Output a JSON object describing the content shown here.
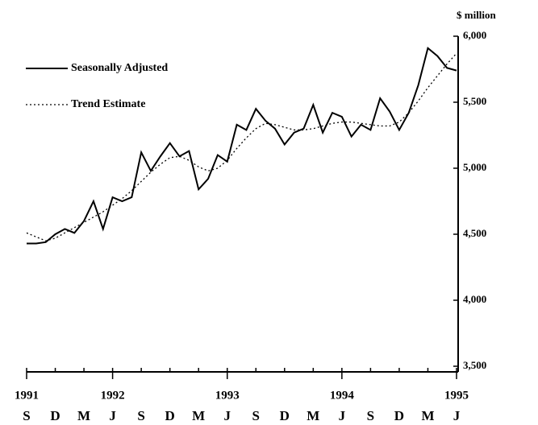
{
  "chart_data": {
    "type": "line",
    "y_axis_label": "$ million",
    "categories": [
      "S",
      null,
      null,
      "D",
      null,
      null,
      "M",
      null,
      null,
      "J",
      null,
      null,
      "S",
      null,
      null,
      "D",
      null,
      null,
      "M",
      null,
      null,
      "J",
      null,
      null,
      "S",
      null,
      null,
      "D",
      null,
      null,
      "M",
      null,
      null,
      "J",
      null,
      null,
      "S",
      null,
      null,
      "D",
      null,
      null,
      "M",
      null,
      null,
      "J"
    ],
    "year_labels": [
      "1991",
      null,
      null,
      null,
      null,
      null,
      null,
      null,
      null,
      "1992",
      null,
      null,
      null,
      null,
      null,
      null,
      null,
      null,
      null,
      null,
      null,
      "1993",
      null,
      null,
      null,
      null,
      null,
      null,
      null,
      null,
      null,
      null,
      null,
      "1994",
      null,
      null,
      null,
      null,
      null,
      null,
      null,
      null,
      null,
      null,
      null,
      "1995"
    ],
    "series": [
      {
        "name": "Seasonally Adjusted",
        "color": "#000000",
        "style": "solid",
        "values": [
          4430,
          4430,
          4440,
          4500,
          4540,
          4510,
          4600,
          4750,
          4540,
          4780,
          4750,
          4780,
          5120,
          4980,
          5090,
          5190,
          5090,
          5130,
          4840,
          4920,
          5100,
          5050,
          5330,
          5290,
          5450,
          5360,
          5300,
          5180,
          5270,
          5300,
          5480,
          5270,
          5420,
          5390,
          5240,
          5330,
          5290,
          5530,
          5430,
          5290,
          5420,
          5630,
          5910,
          5850,
          5760,
          5740
        ]
      },
      {
        "name": "Trend Estimate",
        "color": "#000000",
        "style": "dotted",
        "values": [
          4510,
          4480,
          4450,
          4470,
          4510,
          4550,
          4590,
          4630,
          4670,
          4720,
          4770,
          4830,
          4900,
          4970,
          5030,
          5080,
          5090,
          5060,
          5010,
          4980,
          5000,
          5060,
          5150,
          5230,
          5300,
          5340,
          5330,
          5310,
          5290,
          5290,
          5300,
          5320,
          5340,
          5350,
          5350,
          5340,
          5330,
          5320,
          5320,
          5350,
          5420,
          5510,
          5610,
          5700,
          5790,
          5870
        ]
      }
    ],
    "ylim": [
      3500,
      6000
    ],
    "yticks": [
      {
        "value": 3500,
        "label": "3,500"
      },
      {
        "value": 4000,
        "label": "4,000"
      },
      {
        "value": 4500,
        "label": "4,500"
      },
      {
        "value": 5000,
        "label": "5,000"
      },
      {
        "value": 5500,
        "label": "5,500"
      },
      {
        "value": 6000,
        "label": "6,000"
      }
    ],
    "grid": false
  }
}
